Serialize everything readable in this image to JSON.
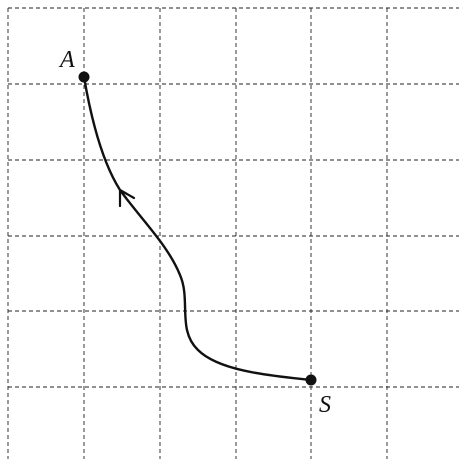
{
  "points": {
    "start": {
      "label": "S"
    },
    "end": {
      "label": "A"
    }
  },
  "colors": {
    "ink": "#111111",
    "grid": "#222222",
    "background": "#ffffff"
  }
}
